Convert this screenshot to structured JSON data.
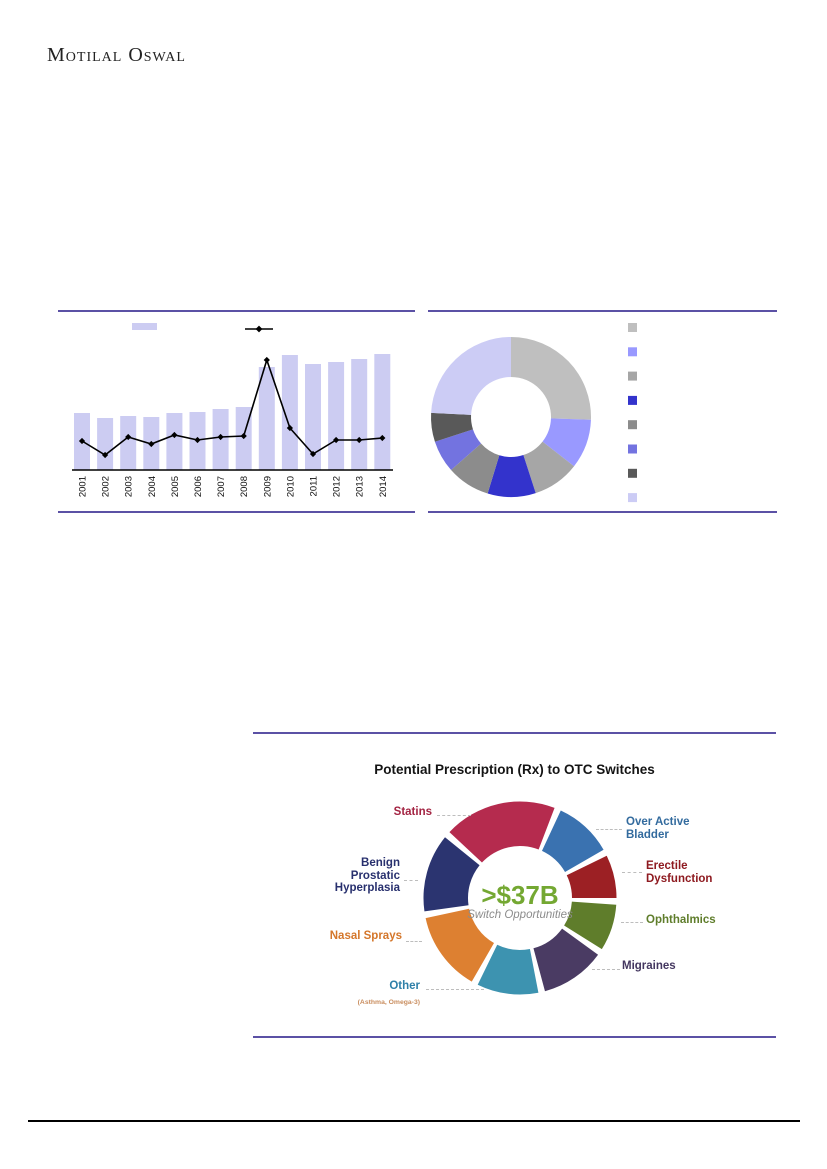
{
  "page": {
    "brand": "Motilal Oswal"
  },
  "chart_data": [
    {
      "id": "yearly-bar-line-trend",
      "type": "bar",
      "title": "",
      "xlabel": "",
      "ylabel": "",
      "categories": [
        "2001",
        "2002",
        "2003",
        "2004",
        "2005",
        "2006",
        "2007",
        "2008",
        "2009",
        "2010",
        "2011",
        "2012",
        "2013",
        "2014"
      ],
      "series": [
        {
          "name": "bars",
          "type": "bar",
          "color": "#ccccf2",
          "values": [
            57,
            52,
            54,
            53,
            57,
            58,
            61,
            63,
            103,
            115,
            106,
            108,
            111,
            116
          ]
        },
        {
          "name": "line",
          "type": "line",
          "color": "#000000",
          "marker": "diamond",
          "values": [
            29,
            15,
            33,
            26,
            35,
            30,
            33,
            34,
            110,
            42,
            16,
            30,
            30,
            32
          ]
        }
      ],
      "ylim": [
        0,
        145
      ],
      "value_axis_labels_visible": false,
      "legend": {
        "position": "top",
        "labels_visible": false
      }
    },
    {
      "id": "composition-donut",
      "type": "pie",
      "donut": true,
      "title": "",
      "start_deg": 0,
      "slices": [
        {
          "color": "#bfbfbf",
          "span_deg": 92
        },
        {
          "color": "#9999ff",
          "span_deg": 36
        },
        {
          "color": "#a6a6a6",
          "span_deg": 34
        },
        {
          "color": "#3333cc",
          "span_deg": 35
        },
        {
          "color": "#8c8c8c",
          "span_deg": 31.5
        },
        {
          "color": "#7373e0",
          "span_deg": 23.5
        },
        {
          "color": "#595959",
          "span_deg": 21
        },
        {
          "color": "#ccccf5",
          "span_deg": 87
        }
      ],
      "legend": {
        "position": "right",
        "labels_visible": false
      }
    },
    {
      "id": "rx-to-otc-switches-donut",
      "type": "pie",
      "donut": true,
      "title": "Potential Prescription (Rx) to OTC Switches",
      "center": {
        "value": ">$37B",
        "caption": "Switch Opportunities",
        "value_color": "#74a832",
        "caption_color": "#8c8c8c"
      },
      "start_deg": 311,
      "gap_deg": 4,
      "slices": [
        {
          "label": "Statins",
          "span_deg": 72,
          "color": "#b52b4e",
          "label_color": "#a32342"
        },
        {
          "label": "Over Active Bladder",
          "span_deg": 39,
          "color": "#3a72b0",
          "label_color": "#336b9e"
        },
        {
          "label": "Erectile Dysfunction",
          "span_deg": 30,
          "color": "#9c2024",
          "label_color": "#8e1a20"
        },
        {
          "label": "Ophthalmics",
          "span_deg": 32,
          "color": "#5f7d2b",
          "label_color": "#5f7d2b"
        },
        {
          "label": "Migraines",
          "span_deg": 43,
          "color": "#4a3b63",
          "label_color": "#443760"
        },
        {
          "label": "Other",
          "sublabel": "(Asthma, Omega-3)",
          "span_deg": 41,
          "color": "#3d93b0",
          "label_color": "#2e7fa8",
          "sublabel_color": "#c98d5e"
        },
        {
          "label": "Nasal Sprays",
          "span_deg": 52,
          "color": "#dd8031",
          "label_color": "#d4762a"
        },
        {
          "label": "Benign Prostatic Hyperplasia",
          "span_deg": 51,
          "color": "#2b3470",
          "label_color": "#28306e"
        }
      ]
    }
  ]
}
